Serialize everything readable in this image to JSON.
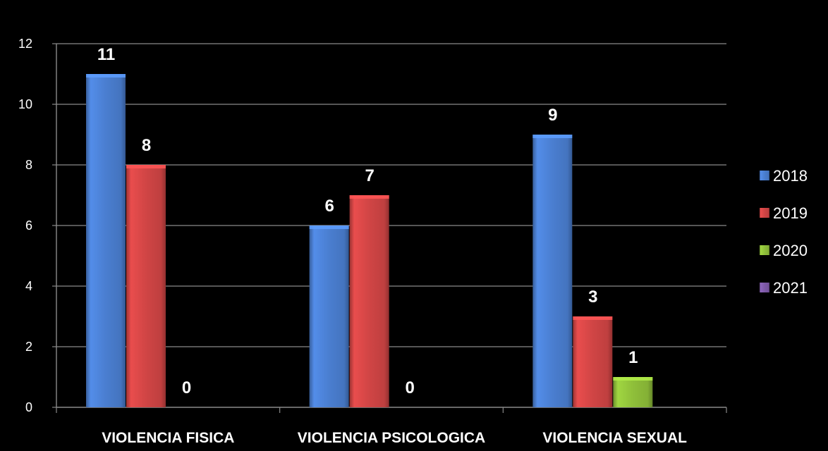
{
  "chart_data": {
    "type": "bar",
    "title": "",
    "xlabel": "",
    "ylabel": "",
    "categories": [
      "VIOLENCIA FISICA",
      "VIOLENCIA PSICOLOGICA",
      "VIOLENCIA SEXUAL"
    ],
    "series": [
      {
        "name": "2018",
        "color": "#4a7ed0",
        "values": [
          11,
          6,
          9
        ]
      },
      {
        "name": "2019",
        "color": "#d04545",
        "values": [
          8,
          7,
          3
        ]
      },
      {
        "name": "2020",
        "color": "#8fbf3a",
        "values": [
          0,
          0,
          1
        ]
      },
      {
        "name": "2021",
        "color": "#7e5aa8",
        "values": [
          null,
          null,
          null
        ]
      }
    ],
    "data_labels": [
      [
        "11",
        "8",
        "0",
        ""
      ],
      [
        "6",
        "7",
        "0",
        ""
      ],
      [
        "9",
        "3",
        "1",
        ""
      ]
    ],
    "ylim": [
      0,
      12
    ],
    "yticks": [
      0,
      2,
      4,
      6,
      8,
      10,
      12
    ],
    "grid": true,
    "legend_position": "right",
    "background": "#000000",
    "grid_color": "#8a8a8a"
  }
}
